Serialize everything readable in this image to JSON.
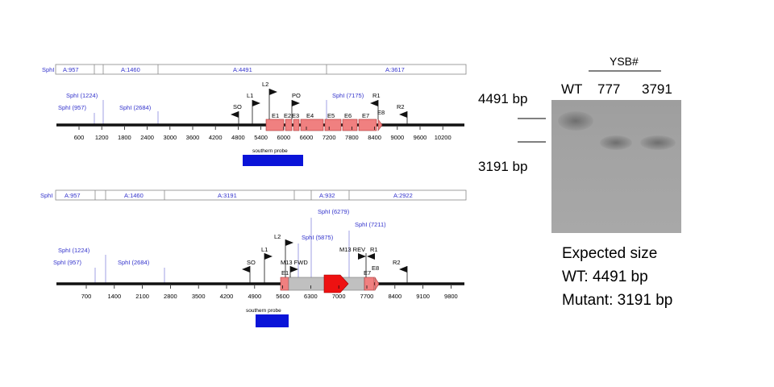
{
  "maps": [
    {
      "fragments": {
        "enzyme": "SphI",
        "cells": [
          "A:957",
          "A:1460",
          "A:4491",
          "A:3617"
        ]
      },
      "sites": [
        {
          "label": "SphI (957)"
        },
        {
          "label": "SphI (1224)"
        },
        {
          "label": "SphI (2684)"
        },
        {
          "label": "SphI (7175)"
        }
      ],
      "primers": [
        "SO",
        "L1",
        "L2",
        "PO",
        "R1",
        "R2"
      ],
      "exons": [
        "E1",
        "E2",
        "E3",
        "E4",
        "E5",
        "E6",
        "E7",
        "E8"
      ],
      "ticks": [
        "600",
        "1200",
        "1800",
        "2400",
        "3000",
        "3600",
        "4200",
        "4800",
        "5400",
        "6000",
        "6600",
        "7200",
        "7800",
        "8400",
        "9000",
        "9600",
        "10200"
      ],
      "probe": "southern probe"
    },
    {
      "fragments": {
        "enzyme": "SphI",
        "cells": [
          "A:957",
          "A:1460",
          "A:3191",
          "A:932",
          "A:2922"
        ]
      },
      "sites": [
        {
          "label": "SphI (957)"
        },
        {
          "label": "SphI (1224)"
        },
        {
          "label": "SphI (2684)"
        },
        {
          "label": "SphI (5875)"
        },
        {
          "label": "SphI (6279)"
        },
        {
          "label": "SphI (7211)"
        }
      ],
      "primers": [
        "SO",
        "L1",
        "L2",
        "M13 FWD",
        "M13 REV",
        "R1",
        "R2"
      ],
      "exons": [
        "E1",
        "E7",
        "E8"
      ],
      "ticks": [
        "700",
        "1400",
        "2100",
        "2800",
        "3500",
        "4200",
        "4900",
        "5600",
        "6300",
        "7000",
        "7700",
        "8400",
        "9100",
        "9800"
      ],
      "probe": "southern probe"
    }
  ],
  "gel": {
    "group_label": "YSB#",
    "lanes": [
      "WT",
      "777",
      "3791"
    ],
    "markers": [
      "4491 bp",
      "3191 bp"
    ]
  },
  "expected": {
    "title": "Expected size",
    "wt": "WT: 4491 bp",
    "mutant": "Mutant: 3191 bp"
  },
  "colors": {
    "blue_text": "#3333cc",
    "exon": "#f08080",
    "probe": "#0a14d8",
    "cassette": "#c0c0c0",
    "reporter": "#ee1111"
  }
}
